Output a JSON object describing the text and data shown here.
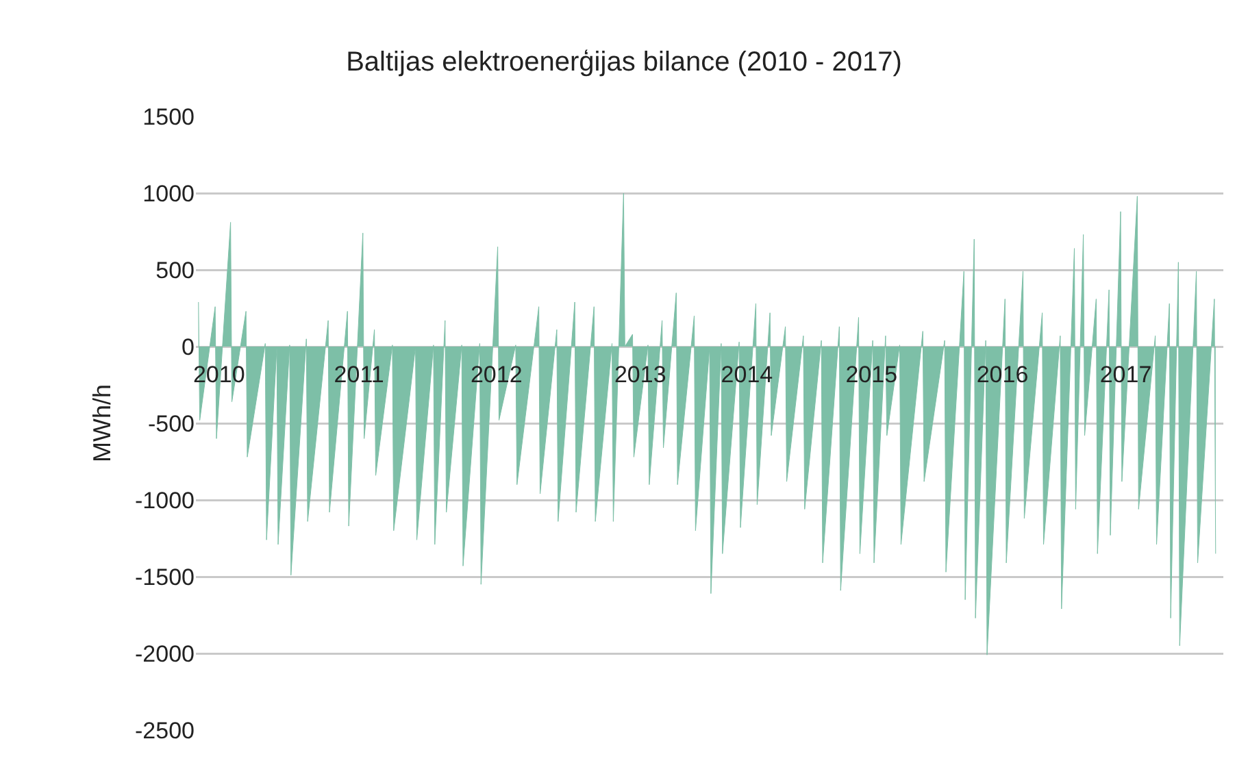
{
  "chart_data": {
    "type": "area",
    "title": "Baltijas elektroenerģijas bilance (2010 - 2017)",
    "ylabel": "MWh/h",
    "color": "#7dbfa7",
    "grid": "y",
    "xlim": [
      2010,
      2018
    ],
    "ylim": [
      -2500,
      1500
    ],
    "yticks": [
      -2500,
      -2000,
      -1500,
      -1000,
      -500,
      0,
      500,
      1000,
      1500
    ],
    "xticks": [
      {
        "value": 2010.18,
        "label": "2010"
      },
      {
        "value": 2011.27,
        "label": "2011"
      },
      {
        "value": 2012.34,
        "label": "2012"
      },
      {
        "value": 2013.46,
        "label": "2013"
      },
      {
        "value": 2014.29,
        "label": "2014"
      },
      {
        "value": 2015.26,
        "label": "2015"
      },
      {
        "value": 2016.28,
        "label": "2016"
      },
      {
        "value": 2017.24,
        "label": "2017"
      }
    ],
    "x": [
      2010.02,
      2010.03,
      2010.15,
      2010.16,
      2010.27,
      2010.28,
      2010.39,
      2010.4,
      2010.54,
      2010.55,
      2010.63,
      2010.64,
      2010.73,
      2010.74,
      2010.86,
      2010.87,
      2011.03,
      2011.04,
      2011.18,
      2011.19,
      2011.3,
      2011.31,
      2011.39,
      2011.4,
      2011.53,
      2011.54,
      2011.71,
      2011.72,
      2011.85,
      2011.86,
      2011.94,
      2011.95,
      2012.07,
      2012.08,
      2012.21,
      2012.22,
      2012.35,
      2012.36,
      2012.49,
      2012.5,
      2012.67,
      2012.68,
      2012.81,
      2012.82,
      2012.95,
      2012.96,
      2013.1,
      2013.11,
      2013.24,
      2013.25,
      2013.33,
      2013.34,
      2013.4,
      2013.41,
      2013.52,
      2013.53,
      2013.63,
      2013.64,
      2013.74,
      2013.75,
      2013.88,
      2013.89,
      2014.0,
      2014.01,
      2014.09,
      2014.1,
      2014.23,
      2014.24,
      2014.36,
      2014.37,
      2014.47,
      2014.48,
      2014.59,
      2014.6,
      2014.73,
      2014.74,
      2014.87,
      2014.88,
      2015.01,
      2015.02,
      2015.16,
      2015.17,
      2015.27,
      2015.28,
      2015.37,
      2015.38,
      2015.48,
      2015.49,
      2015.66,
      2015.67,
      2015.83,
      2015.84,
      2015.98,
      2015.99,
      2016.06,
      2016.07,
      2016.15,
      2016.16,
      2016.3,
      2016.31,
      2016.44,
      2016.45,
      2016.59,
      2016.6,
      2016.73,
      2016.74,
      2016.84,
      2016.85,
      2016.91,
      2016.92,
      2017.01,
      2017.02,
      2017.11,
      2017.12,
      2017.2,
      2017.21,
      2017.33,
      2017.34,
      2017.47,
      2017.48,
      2017.58,
      2017.59,
      2017.65,
      2017.66,
      2017.79,
      2017.8,
      2017.93,
      2017.94
    ],
    "values": [
      290,
      -480,
      260,
      -600,
      810,
      -360,
      230,
      -720,
      20,
      -1260,
      0,
      -1290,
      10,
      -1490,
      50,
      -1140,
      170,
      -1080,
      230,
      -1170,
      740,
      -600,
      110,
      -840,
      10,
      -1200,
      0,
      -1260,
      10,
      -1290,
      170,
      -1080,
      10,
      -1430,
      20,
      -1550,
      650,
      -480,
      10,
      -900,
      260,
      -960,
      110,
      -1140,
      290,
      -1080,
      260,
      -1140,
      20,
      -1140,
      1000,
      0,
      80,
      -720,
      10,
      -900,
      170,
      -660,
      350,
      -900,
      200,
      -1200,
      0,
      -1610,
      20,
      -1350,
      30,
      -1180,
      280,
      -1030,
      220,
      -580,
      130,
      -880,
      70,
      -1060,
      40,
      -1410,
      130,
      -1590,
      190,
      -1350,
      40,
      -1410,
      70,
      -580,
      10,
      -1290,
      100,
      -880,
      40,
      -1470,
      490,
      -1650,
      700,
      -1770,
      40,
      -2010,
      310,
      -1410,
      490,
      -1120,
      220,
      -1290,
      70,
      -1710,
      640,
      -1060,
      730,
      -580,
      310,
      -1350,
      370,
      -1230,
      880,
      -880,
      980,
      -1060,
      70,
      -1290,
      280,
      -1770,
      550,
      -1950,
      490,
      -1410,
      310,
      -1350
    ]
  }
}
